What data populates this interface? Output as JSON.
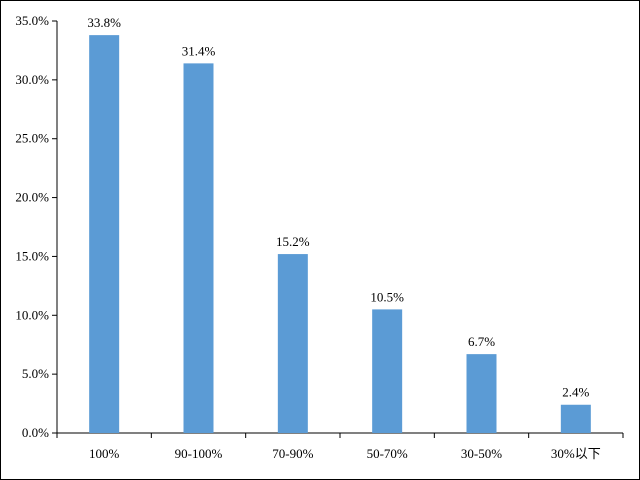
{
  "chart_data": {
    "type": "bar",
    "categories": [
      "100%",
      "90-100%",
      "70-90%",
      "50-70%",
      "30-50%",
      "30%以下"
    ],
    "values": [
      33.8,
      31.4,
      15.2,
      10.5,
      6.7,
      2.4
    ],
    "data_labels": [
      "33.8%",
      "31.4%",
      "15.2%",
      "10.5%",
      "6.7%",
      "2.4%"
    ],
    "ylim": [
      0,
      35
    ],
    "yticks": [
      0,
      5,
      10,
      15,
      20,
      25,
      30,
      35
    ],
    "ytick_labels": [
      "0.0%",
      "5.0%",
      "10.0%",
      "15.0%",
      "20.0%",
      "25.0%",
      "30.0%",
      "35.0%"
    ],
    "grid": false,
    "legend": "none",
    "title": "",
    "xlabel": "",
    "ylabel": "",
    "bar_color": "#5b9bd5"
  }
}
